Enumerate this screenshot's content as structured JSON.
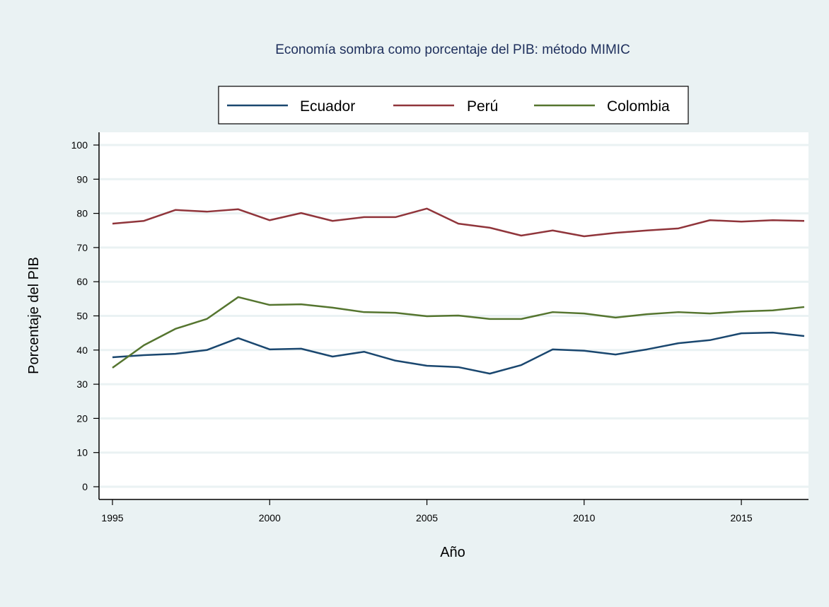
{
  "chart_data": {
    "type": "line",
    "title": "Economía sombra como porcentaje del PIB: método MIMIC",
    "xlabel": "Año",
    "ylabel": "Porcentaje del PIB",
    "xlim": [
      1995,
      2017
    ],
    "ylim": [
      0,
      100
    ],
    "xticks": [
      "1995",
      "2000",
      "2005",
      "2010",
      "2015"
    ],
    "yticks": [
      "0",
      "10",
      "20",
      "30",
      "40",
      "50",
      "60",
      "70",
      "80",
      "90",
      "100"
    ],
    "grid": true,
    "legend_position": "top",
    "x": [
      1995,
      1996,
      1997,
      1998,
      1999,
      2000,
      2001,
      2002,
      2003,
      2004,
      2005,
      2006,
      2007,
      2008,
      2009,
      2010,
      2011,
      2012,
      2013,
      2014,
      2015,
      2016,
      2017
    ],
    "series": [
      {
        "name": "Ecuador",
        "color": "#1a476f",
        "values": [
          37.9,
          38.5,
          38.9,
          40.0,
          43.5,
          40.2,
          40.4,
          38.1,
          39.5,
          36.9,
          35.4,
          35.0,
          33.1,
          35.6,
          40.2,
          39.8,
          38.7,
          40.2,
          42.0,
          42.9,
          44.9,
          45.1,
          44.1
        ]
      },
      {
        "name": "Perú",
        "color": "#90353b",
        "values": [
          77.0,
          77.8,
          81.0,
          80.5,
          81.2,
          78.0,
          80.1,
          77.8,
          78.9,
          78.9,
          81.4,
          77.0,
          75.8,
          73.5,
          75.0,
          73.3,
          74.3,
          75.0,
          75.6,
          78.0,
          77.6,
          78.0,
          77.8
        ]
      },
      {
        "name": "Colombia",
        "color": "#55752f",
        "values": [
          34.8,
          41.4,
          46.2,
          49.1,
          55.5,
          53.2,
          53.4,
          52.4,
          51.1,
          50.9,
          49.9,
          50.1,
          49.1,
          49.1,
          51.1,
          50.7,
          49.5,
          50.5,
          51.1,
          50.7,
          51.3,
          51.6,
          52.6
        ]
      }
    ]
  }
}
